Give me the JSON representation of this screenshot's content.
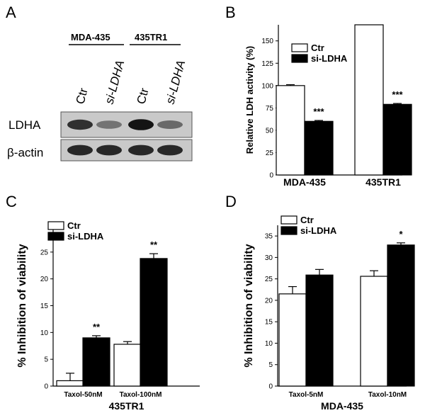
{
  "panels": {
    "a": {
      "letter": "A",
      "groups": [
        "MDA-435",
        "435TR1"
      ],
      "lanes": [
        "Ctr",
        "si-LDHA",
        "Ctr",
        "si-LDHA"
      ],
      "rows": [
        "LDHA",
        "β-actin"
      ],
      "ldha_band_intensity": [
        0.8,
        0.45,
        0.95,
        0.5
      ],
      "actin_band_intensity": [
        0.85,
        0.85,
        0.85,
        0.85
      ]
    },
    "b": {
      "letter": "B"
    },
    "c": {
      "letter": "C"
    },
    "d": {
      "letter": "D"
    }
  },
  "chart_data": [
    {
      "id": "b",
      "type": "bar",
      "categories": [
        "MDA-435",
        "435TR1"
      ],
      "series": [
        {
          "name": "Ctr",
          "color": "#ffffff",
          "values": [
            100,
            168
          ],
          "errors": [
            1,
            0
          ]
        },
        {
          "name": "si-LDHA",
          "color": "#000000",
          "values": [
            60,
            79
          ],
          "errors": [
            1,
            1
          ]
        }
      ],
      "annotations": [
        {
          "category": 0,
          "series": 1,
          "text": "***"
        },
        {
          "category": 1,
          "series": 1,
          "text": "***"
        }
      ],
      "xlabel": "",
      "ylabel": "Relative LDH activity (%)",
      "ylim": [
        0,
        168
      ],
      "yticks": [
        0,
        25,
        50,
        75,
        100,
        125,
        150
      ],
      "legend_position": "top-left"
    },
    {
      "id": "c",
      "type": "bar",
      "categories": [
        "Taxol-50nM",
        "Taxol-100nM"
      ],
      "series": [
        {
          "name": "Ctr",
          "color": "#ffffff",
          "values": [
            1.0,
            7.8
          ],
          "errors": [
            1.4,
            0.5
          ]
        },
        {
          "name": "si-LDHA",
          "color": "#000000",
          "values": [
            9.0,
            23.8
          ],
          "errors": [
            0.4,
            0.9
          ]
        }
      ],
      "annotations": [
        {
          "category": 0,
          "series": 1,
          "text": "**"
        },
        {
          "category": 1,
          "series": 1,
          "text": "**"
        }
      ],
      "xlabel": "435TR1",
      "ylabel": "% Inhibition of viability",
      "ylim": [
        0,
        30
      ],
      "yticks": [
        0,
        5,
        10,
        15,
        20,
        25
      ],
      "legend_position": "top-left"
    },
    {
      "id": "d",
      "type": "bar",
      "categories": [
        "Taxol-5nM",
        "Taxol-10nM"
      ],
      "series": [
        {
          "name": "Ctr",
          "color": "#ffffff",
          "values": [
            21.5,
            25.6
          ],
          "errors": [
            1.7,
            1.3
          ]
        },
        {
          "name": "si-LDHA",
          "color": "#000000",
          "values": [
            25.9,
            32.9
          ],
          "errors": [
            1.3,
            0.5
          ]
        }
      ],
      "annotations": [
        {
          "category": 1,
          "series": 1,
          "text": "*"
        }
      ],
      "xlabel": "MDA-435",
      "ylabel": "% Inhibition of viability",
      "ylim": [
        0,
        37.5
      ],
      "yticks": [
        0,
        5,
        10,
        15,
        20,
        25,
        30,
        35
      ],
      "legend_position": "top-left"
    }
  ]
}
